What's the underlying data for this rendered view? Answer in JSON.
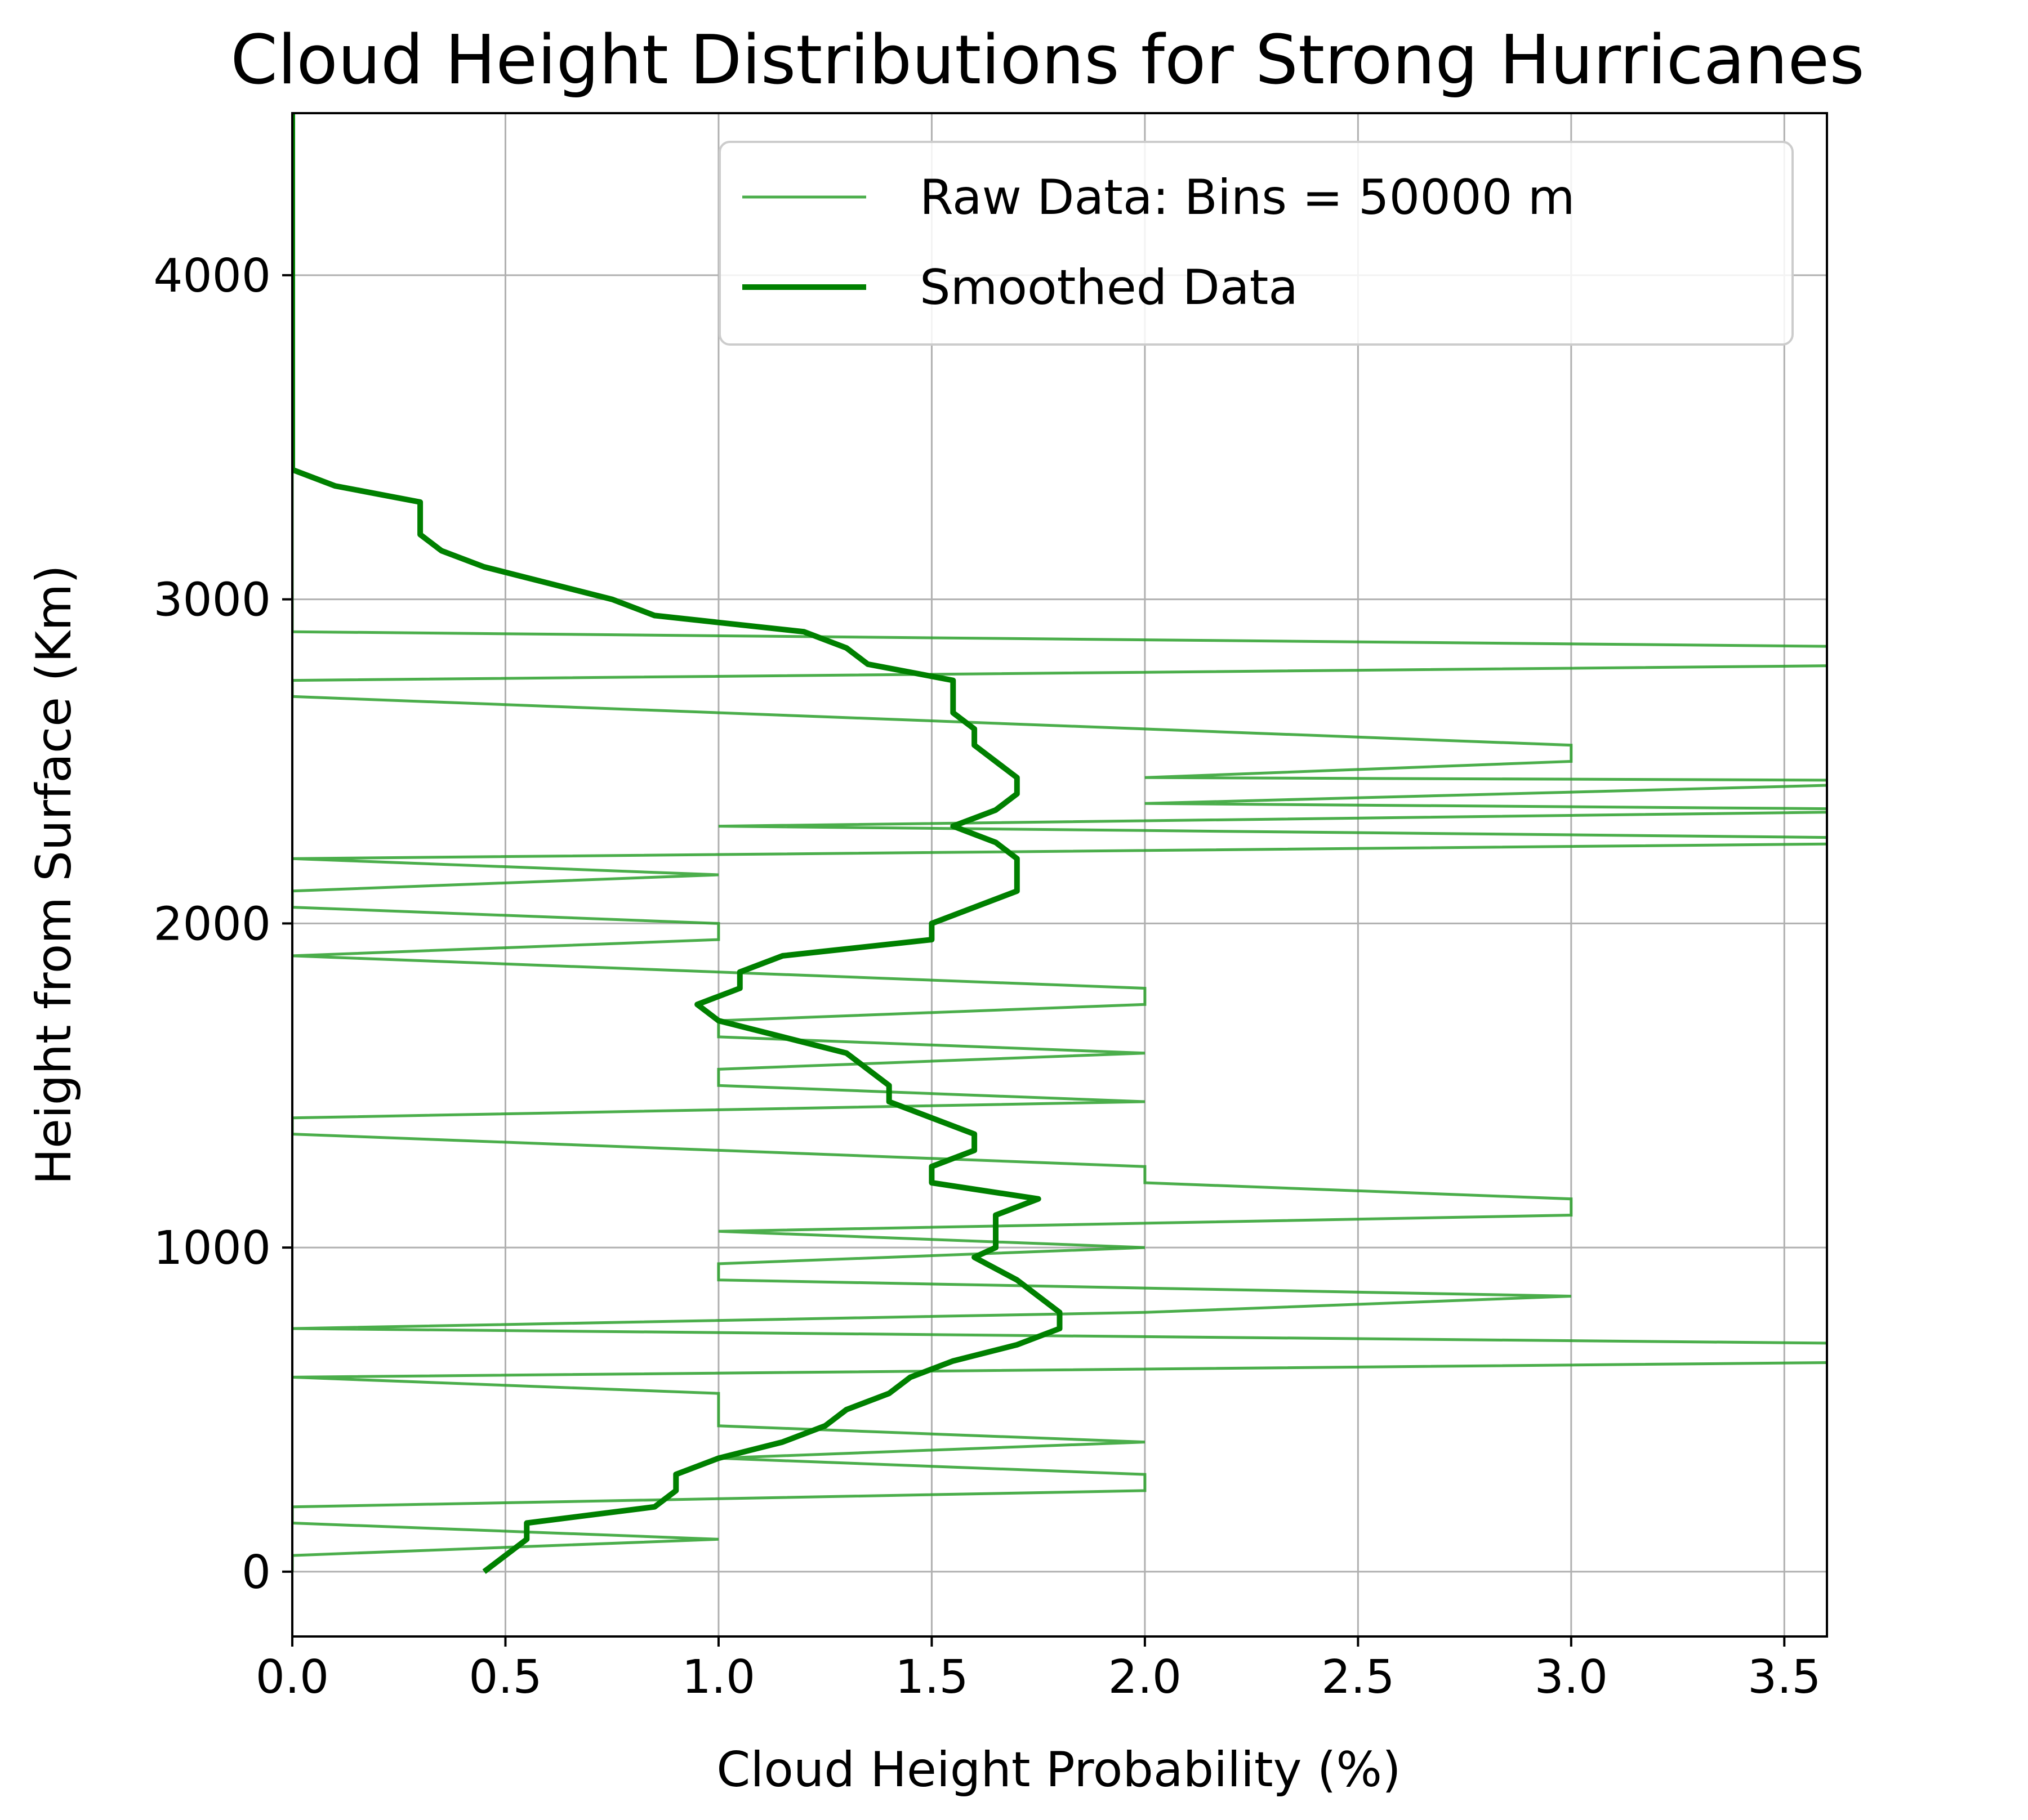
{
  "chart_data": {
    "type": "line",
    "title": "Cloud Height Distributions for Strong Hurricanes",
    "xlabel": "Cloud Height Probability (%)",
    "ylabel": "Height from Surface (Km)",
    "xlim": [
      0,
      3.6
    ],
    "ylim": [
      -200,
      4500
    ],
    "xticks": [
      0.0,
      0.5,
      1.0,
      1.5,
      2.0,
      2.5,
      3.0,
      3.5
    ],
    "xtick_labels": [
      "0.0",
      "0.5",
      "1.0",
      "1.5",
      "2.0",
      "2.5",
      "3.0",
      "3.5"
    ],
    "yticks": [
      0,
      1000,
      2000,
      3000,
      4000
    ],
    "ytick_labels": [
      "0",
      "1000",
      "2000",
      "3000",
      "4000"
    ],
    "grid": true,
    "legend_position": "top-right",
    "colors": {
      "raw": "#2ca02c",
      "smoothed": "#008000"
    },
    "series": [
      {
        "name": "Raw Data: Bins = 50000 m",
        "style": "thin",
        "points": [
          [
            0,
            0
          ],
          [
            0,
            50
          ],
          [
            1,
            100
          ],
          [
            0,
            150
          ],
          [
            0,
            200
          ],
          [
            2,
            250
          ],
          [
            2,
            300
          ],
          [
            1,
            350
          ],
          [
            2,
            400
          ],
          [
            1,
            450
          ],
          [
            1,
            500
          ],
          [
            1,
            550
          ],
          [
            0,
            600
          ],
          [
            4,
            650
          ],
          [
            4,
            700
          ],
          [
            0,
            750
          ],
          [
            2,
            800
          ],
          [
            3,
            850
          ],
          [
            1,
            900
          ],
          [
            1,
            950
          ],
          [
            2,
            1000
          ],
          [
            1,
            1050
          ],
          [
            3,
            1100
          ],
          [
            3,
            1150
          ],
          [
            2,
            1200
          ],
          [
            2,
            1250
          ],
          [
            0,
            1350
          ],
          [
            0,
            1400
          ],
          [
            2,
            1450
          ],
          [
            1,
            1500
          ],
          [
            1,
            1550
          ],
          [
            2,
            1600
          ],
          [
            1,
            1650
          ],
          [
            1,
            1700
          ],
          [
            2,
            1750
          ],
          [
            2,
            1800
          ],
          [
            0,
            1900
          ],
          [
            1,
            1950
          ],
          [
            1,
            2000
          ],
          [
            0,
            2050
          ],
          [
            0,
            2100
          ],
          [
            1,
            2150
          ],
          [
            0,
            2200
          ],
          [
            4,
            2250
          ],
          [
            4,
            2260
          ],
          [
            1,
            2300
          ],
          [
            4,
            2350
          ],
          [
            2,
            2370
          ],
          [
            4,
            2440
          ],
          [
            2,
            2450
          ],
          [
            3,
            2500
          ],
          [
            3,
            2550
          ],
          [
            0,
            2700
          ],
          [
            0,
            2750
          ],
          [
            4,
            2800
          ],
          [
            4,
            2850
          ],
          [
            0,
            2900
          ],
          [
            0,
            4500
          ]
        ]
      },
      {
        "name": "Smoothed Data",
        "style": "thick",
        "points": [
          [
            0.45,
            0
          ],
          [
            0.55,
            100
          ],
          [
            0.55,
            150
          ],
          [
            0.85,
            200
          ],
          [
            0.9,
            250
          ],
          [
            0.9,
            300
          ],
          [
            1.0,
            350
          ],
          [
            1.15,
            400
          ],
          [
            1.25,
            450
          ],
          [
            1.3,
            500
          ],
          [
            1.4,
            550
          ],
          [
            1.45,
            600
          ],
          [
            1.55,
            650
          ],
          [
            1.7,
            700
          ],
          [
            1.8,
            750
          ],
          [
            1.8,
            800
          ],
          [
            1.7,
            900
          ],
          [
            1.6,
            970
          ],
          [
            1.65,
            1000
          ],
          [
            1.65,
            1100
          ],
          [
            1.75,
            1150
          ],
          [
            1.5,
            1200
          ],
          [
            1.5,
            1250
          ],
          [
            1.6,
            1300
          ],
          [
            1.6,
            1350
          ],
          [
            1.5,
            1400
          ],
          [
            1.4,
            1450
          ],
          [
            1.4,
            1500
          ],
          [
            1.3,
            1600
          ],
          [
            1.15,
            1650
          ],
          [
            1.0,
            1700
          ],
          [
            0.95,
            1750
          ],
          [
            1.05,
            1800
          ],
          [
            1.05,
            1850
          ],
          [
            1.15,
            1900
          ],
          [
            1.5,
            1950
          ],
          [
            1.5,
            2000
          ],
          [
            1.7,
            2100
          ],
          [
            1.7,
            2200
          ],
          [
            1.65,
            2250
          ],
          [
            1.55,
            2300
          ],
          [
            1.65,
            2350
          ],
          [
            1.7,
            2400
          ],
          [
            1.7,
            2450
          ],
          [
            1.6,
            2550
          ],
          [
            1.6,
            2600
          ],
          [
            1.55,
            2650
          ],
          [
            1.55,
            2750
          ],
          [
            1.35,
            2800
          ],
          [
            1.3,
            2850
          ],
          [
            1.2,
            2900
          ],
          [
            0.85,
            2950
          ],
          [
            0.75,
            3000
          ],
          [
            0.45,
            3100
          ],
          [
            0.35,
            3150
          ],
          [
            0.3,
            3200
          ],
          [
            0.3,
            3300
          ],
          [
            0.1,
            3350
          ],
          [
            0.0,
            3400
          ],
          [
            0.0,
            4500
          ]
        ]
      }
    ]
  }
}
